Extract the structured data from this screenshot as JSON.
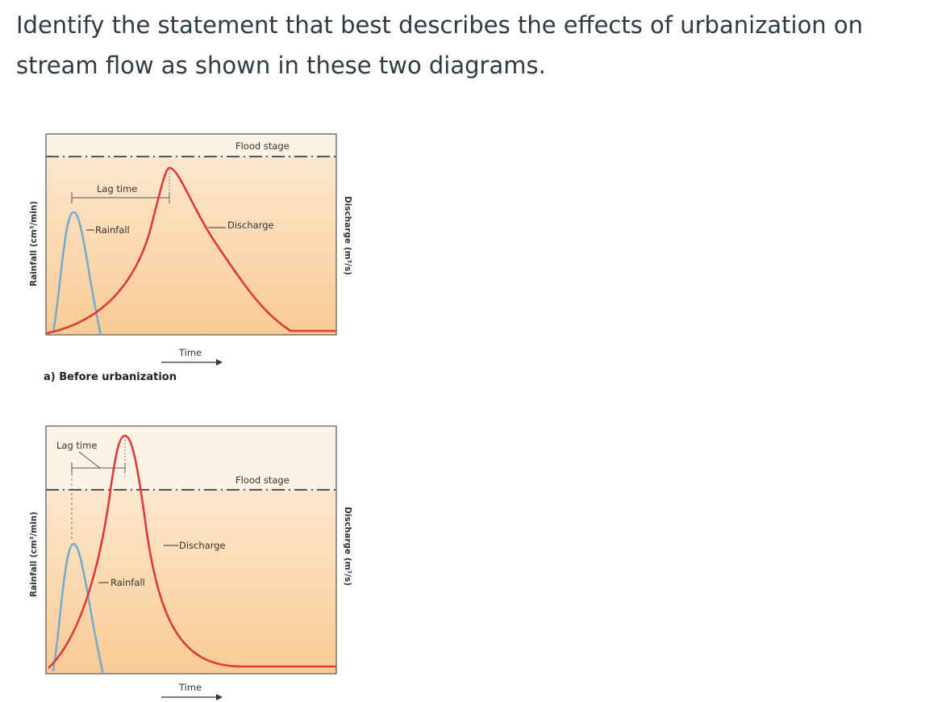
{
  "question": {
    "text": "Identify the statement that best describes the effects of urbanization on stream flow as shown in these two diagrams."
  },
  "diagrams": [
    {
      "caption": "a) Before urbanization",
      "flood_stage_label": "Flood stage",
      "lag_time_label": "Lag time",
      "rainfall_label": "Rainfall",
      "discharge_label": "Discharge",
      "time_label": "Time",
      "y_left_label": "Rainfall (cm³/min)",
      "y_right_label": "Discharge (m³/s)"
    },
    {
      "caption": "",
      "flood_stage_label": "Flood stage",
      "lag_time_label": "Lag time",
      "rainfall_label": "Rainfall",
      "discharge_label": "Discharge",
      "time_label": "Time",
      "y_left_label": "Rainfall (cm³/min)",
      "y_right_label": "Discharge (m³/s)"
    }
  ],
  "colors": {
    "rainfall_curve": "#6fa8d0",
    "discharge_curve": "#dd3b3b",
    "below_flood_fill_top": "#fde4c8",
    "below_flood_fill_bottom": "#f7c98e",
    "above_flood_fill": "#fdf3e4"
  }
}
